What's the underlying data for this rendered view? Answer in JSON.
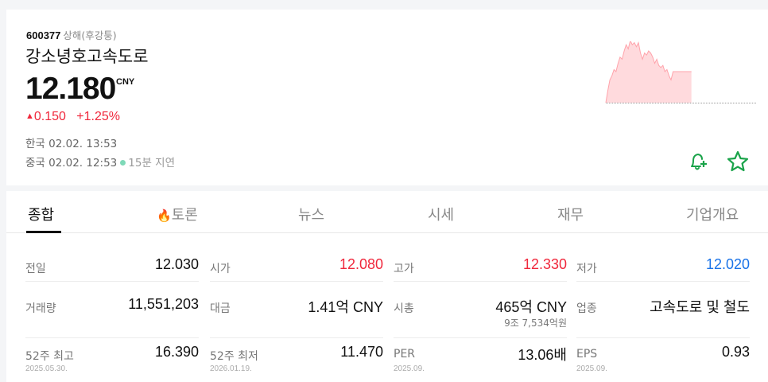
{
  "stock": {
    "code": "600377",
    "market": "상해(후강퉁)",
    "name": "강소녕호고속도로",
    "price": "12.180",
    "currency": "CNY",
    "change": "0.150",
    "change_pct": "+1.25%",
    "up_icon": "triangle-up",
    "kr_time": "한국 02.02. 13:53",
    "cn_time": "중국 02.02. 12:53",
    "delay": "15분 지연"
  },
  "colors": {
    "up": "#f0283c",
    "down": "#1a73e8",
    "accent": "#1aa34a"
  },
  "sparkline": {
    "prev_close": 12.03,
    "values": [
      12.03,
      12.09,
      12.14,
      12.16,
      12.19,
      12.18,
      12.22,
      12.25,
      12.24,
      12.28,
      12.31,
      12.29,
      12.33,
      12.31,
      12.32,
      12.3,
      12.32,
      12.27,
      12.24,
      12.27,
      12.26,
      12.28,
      12.27,
      12.25,
      12.22,
      12.24,
      12.21,
      12.2,
      12.21,
      12.18,
      12.19,
      12.16,
      12.14,
      12.18,
      12.18,
      12.18,
      12.18,
      12.18,
      12.18,
      12.18,
      12.18,
      12.18,
      12.18
    ],
    "total_points": 72
  },
  "actions": {
    "alert_icon": "bell-plus",
    "fav_icon": "star"
  },
  "tabs": [
    {
      "label": "종합"
    },
    {
      "label": "토론",
      "icon": "fire"
    },
    {
      "label": "뉴스"
    },
    {
      "label": "시세"
    },
    {
      "label": "재무"
    },
    {
      "label": "기업개요"
    }
  ],
  "stats": [
    {
      "label": "전일",
      "value": "12.030"
    },
    {
      "label": "시가",
      "value": "12.080",
      "color": "red"
    },
    {
      "label": "고가",
      "value": "12.330",
      "color": "red"
    },
    {
      "label": "저가",
      "value": "12.020",
      "color": "blue"
    },
    {
      "label": "거래량",
      "value": "11,551,203"
    },
    {
      "label": "대금",
      "value": "1.41억 CNY"
    },
    {
      "label": "시총",
      "value": "465억 CNY",
      "sub": "9조 7,534억원"
    },
    {
      "label": "업종",
      "value": "고속도로 및 철도"
    },
    {
      "label": "52주 최고",
      "date": "2025.05.30.",
      "value": "16.390"
    },
    {
      "label": "52주 최저",
      "date": "2026.01.19.",
      "value": "11.470"
    },
    {
      "label": "PER",
      "date": "2025.09.",
      "value": "13.06배"
    },
    {
      "label": "EPS",
      "date": "2025.09.",
      "value": "0.93"
    }
  ]
}
